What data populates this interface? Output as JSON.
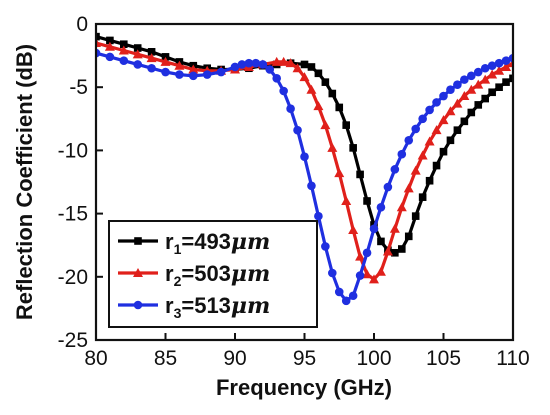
{
  "chart_data": {
    "type": "line",
    "title": "",
    "xlabel": "Frequency (GHz)",
    "ylabel": "Reflection Coefficient (dB)",
    "xlim": [
      80,
      110
    ],
    "ylim": [
      -25,
      0
    ],
    "xticks": [
      80,
      85,
      90,
      95,
      100,
      105,
      110
    ],
    "yticks": [
      0,
      -5,
      -10,
      -15,
      -20,
      -25
    ],
    "grid": false,
    "legend_position": "lower-left",
    "series": [
      {
        "name": "r1=493μm",
        "name_parts": {
          "base": "r",
          "sub": "1",
          "value": "=493",
          "unit": "μm"
        },
        "color": "#000000",
        "marker": "square",
        "x": [
          80,
          81,
          82,
          83,
          84,
          85,
          86,
          87,
          88,
          89,
          90,
          91,
          92,
          93,
          94,
          95,
          95.5,
          96,
          96.5,
          97,
          97.5,
          98,
          98.5,
          99,
          99.5,
          100,
          100.5,
          101,
          101.5,
          102,
          102.5,
          103,
          103.5,
          104,
          104.5,
          105,
          105.5,
          106,
          106.5,
          107,
          107.5,
          108,
          108.5,
          109,
          109.5,
          110
        ],
        "y": [
          -1.0,
          -1.3,
          -1.6,
          -1.9,
          -2.2,
          -2.6,
          -3.0,
          -3.3,
          -3.5,
          -3.6,
          -3.6,
          -3.5,
          -3.3,
          -3.2,
          -3.1,
          -3.2,
          -3.4,
          -3.9,
          -4.6,
          -5.5,
          -6.6,
          -8.0,
          -9.8,
          -11.9,
          -14.0,
          -15.9,
          -17.2,
          -17.9,
          -18.1,
          -17.8,
          -16.8,
          -15.2,
          -13.7,
          -12.4,
          -11.2,
          -10.1,
          -9.2,
          -8.4,
          -7.7,
          -7.0,
          -6.4,
          -5.9,
          -5.4,
          -5.0,
          -4.6,
          -4.3
        ]
      },
      {
        "name": "r2=503μm",
        "name_parts": {
          "base": "r",
          "sub": "2",
          "value": "=503",
          "unit": "μm"
        },
        "color": "#e0201b",
        "marker": "triangle",
        "x": [
          80,
          81,
          82,
          83,
          84,
          85,
          86,
          87,
          88,
          89,
          90,
          91,
          92,
          93,
          93.5,
          94,
          94.5,
          95,
          95.5,
          96,
          96.5,
          97,
          97.5,
          98,
          98.5,
          99,
          99.5,
          100,
          100.5,
          101,
          101.5,
          102,
          102.5,
          103,
          103.5,
          104,
          104.5,
          105,
          105.5,
          106,
          106.5,
          107,
          107.5,
          108,
          108.5,
          109,
          109.5,
          110
        ],
        "y": [
          -1.5,
          -1.8,
          -2.1,
          -2.4,
          -2.7,
          -3.0,
          -3.3,
          -3.6,
          -3.7,
          -3.7,
          -3.6,
          -3.4,
          -3.2,
          -3.0,
          -3.0,
          -3.1,
          -3.5,
          -4.2,
          -5.2,
          -6.5,
          -8.0,
          -9.8,
          -11.8,
          -14.0,
          -16.3,
          -18.4,
          -19.8,
          -20.2,
          -19.6,
          -18.0,
          -16.2,
          -14.5,
          -13.0,
          -11.6,
          -10.4,
          -9.3,
          -8.4,
          -7.6,
          -6.9,
          -6.3,
          -5.7,
          -5.2,
          -4.8,
          -4.4,
          -4.0,
          -3.7,
          -3.4,
          -3.1
        ]
      },
      {
        "name": "r3=513μm",
        "name_parts": {
          "base": "r",
          "sub": "3",
          "value": "=513",
          "unit": "μm"
        },
        "color": "#1f2fe0",
        "marker": "circle",
        "x": [
          80,
          81,
          82,
          83,
          84,
          85,
          86,
          87,
          88,
          89,
          90,
          90.5,
          91,
          91.5,
          92,
          92.5,
          93,
          93.5,
          94,
          94.5,
          95,
          95.5,
          96,
          96.5,
          97,
          97.5,
          98,
          98.5,
          99,
          99.5,
          100,
          100.5,
          101,
          101.5,
          102,
          102.5,
          103,
          103.5,
          104,
          104.5,
          105,
          105.5,
          106,
          106.5,
          107,
          107.5,
          108,
          108.5,
          109,
          109.5,
          110
        ],
        "y": [
          -2.3,
          -2.6,
          -2.9,
          -3.2,
          -3.5,
          -3.8,
          -4.0,
          -4.1,
          -4.0,
          -3.8,
          -3.4,
          -3.2,
          -3.1,
          -3.1,
          -3.2,
          -3.6,
          -4.3,
          -5.3,
          -6.7,
          -8.4,
          -10.5,
          -12.8,
          -15.2,
          -17.6,
          -19.7,
          -21.2,
          -21.9,
          -21.5,
          -19.9,
          -18.1,
          -16.2,
          -14.5,
          -12.9,
          -11.5,
          -10.3,
          -9.2,
          -8.3,
          -7.5,
          -6.8,
          -6.2,
          -5.7,
          -5.2,
          -4.8,
          -4.4,
          -4.1,
          -3.8,
          -3.5,
          -3.3,
          -3.1,
          -2.9,
          -2.7
        ]
      }
    ]
  }
}
